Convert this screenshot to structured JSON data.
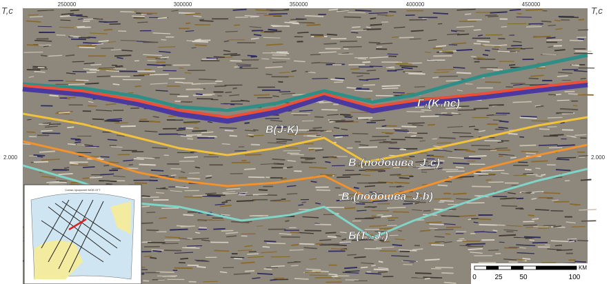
{
  "axes": {
    "top_left_label": "T,c",
    "top_right_label": "T,c",
    "x_ticks": [
      "250000",
      "300000",
      "350000",
      "400000",
      "450000"
    ],
    "y_left_tick": "2.000",
    "y_right_tick": "2.000"
  },
  "horizons": [
    {
      "label": "Г₁(K₁nc)"
    },
    {
      "label": "B(J-K)"
    },
    {
      "label": "B₂(подошва_J₂c)"
    },
    {
      "label": "B₁(подошва_J₁b)"
    },
    {
      "label": "Б(T₃-J₁)"
    }
  ],
  "inset": {
    "title": "Схема профилей МОВ ОГТ"
  },
  "scale_bar": {
    "unit": "KM",
    "labels": [
      "0",
      "25",
      "50",
      "100"
    ]
  }
}
